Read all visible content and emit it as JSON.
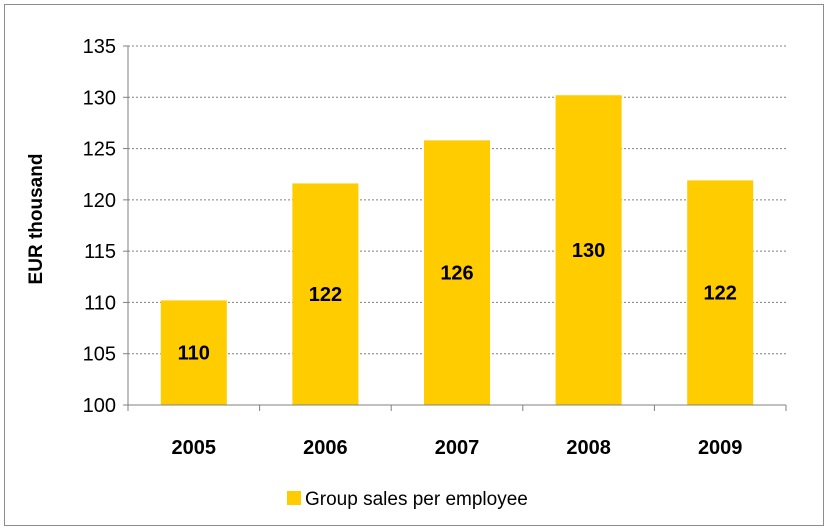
{
  "chart_data": {
    "type": "bar",
    "categories": [
      "2005",
      "2006",
      "2007",
      "2008",
      "2009"
    ],
    "values": [
      110.2,
      121.6,
      125.8,
      130.2,
      121.9
    ],
    "data_labels": [
      "110",
      "122",
      "126",
      "130",
      "122"
    ],
    "series": [
      {
        "name": "Group sales per employee",
        "values": [
          110.2,
          121.6,
          125.8,
          130.2,
          121.9
        ]
      }
    ],
    "title": "",
    "xlabel": "",
    "ylabel": "EUR thousand",
    "ylim": [
      100,
      135
    ],
    "yticks": [
      100,
      105,
      110,
      115,
      120,
      125,
      130,
      135
    ],
    "grid": true,
    "legend_position": "bottom",
    "bar_color": "#FFCC00",
    "grid_color": "#808080"
  }
}
